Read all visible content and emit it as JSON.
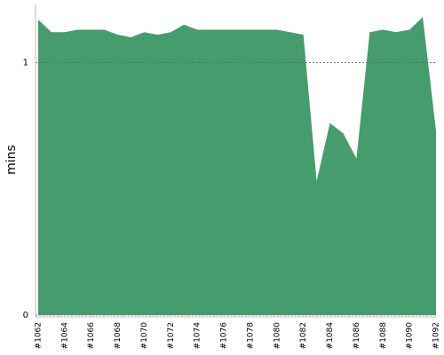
{
  "chart_data": {
    "type": "area",
    "y_label": "mins",
    "categories": [
      "#1062",
      null,
      "#1064",
      null,
      "#1066",
      null,
      "#1068",
      null,
      "#1070",
      null,
      "#1072",
      null,
      "#1074",
      null,
      "#1076",
      null,
      "#1078",
      null,
      "#1080",
      null,
      "#1082",
      null,
      "#1084",
      null,
      "#1086",
      null,
      "#1088",
      null,
      "#1090",
      null,
      "#1092"
    ],
    "values": [
      1.17,
      1.12,
      1.12,
      1.13,
      1.13,
      1.13,
      1.11,
      1.1,
      1.12,
      1.11,
      1.12,
      1.15,
      1.13,
      1.13,
      1.13,
      1.13,
      1.13,
      1.13,
      1.13,
      1.12,
      1.11,
      0.53,
      0.76,
      0.72,
      0.62,
      1.12,
      1.13,
      1.12,
      1.13,
      1.18,
      0.73
    ],
    "color": "#469c6d",
    "ylim": [
      0,
      1.23
    ],
    "yticks": [
      0,
      1
    ],
    "grid": true
  }
}
